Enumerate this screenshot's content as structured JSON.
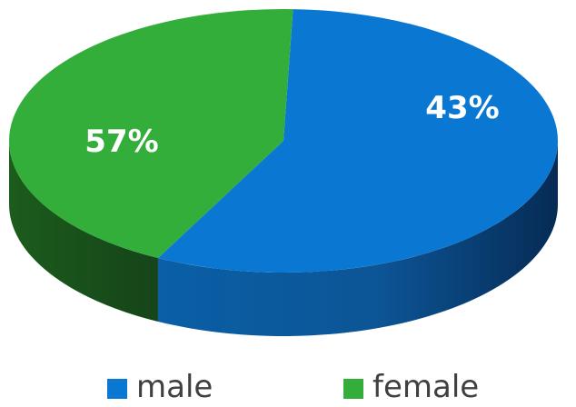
{
  "chart_data": {
    "type": "pie",
    "style": "3d",
    "categories": [
      "male",
      "female"
    ],
    "values": [
      57,
      43
    ],
    "data_labels": [
      "57%",
      "43%"
    ],
    "colors": {
      "male": "#0a78d2",
      "female": "#33ae3a"
    },
    "legend": {
      "placement": "bottom",
      "entries": [
        "male",
        "female"
      ]
    }
  }
}
